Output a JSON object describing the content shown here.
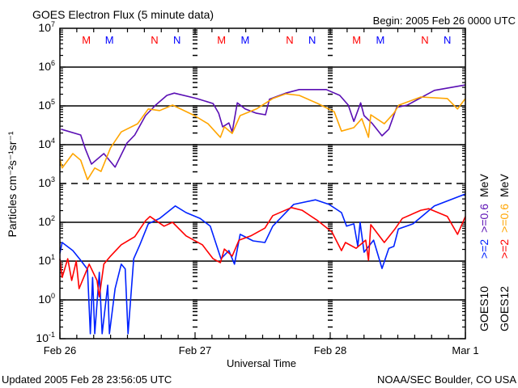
{
  "chart_data": {
    "type": "line",
    "title": "GOES Electron Flux (5 minute data)",
    "begin_label": "Begin: 2005 Feb 26 0000 UTC",
    "xlabel": "Universal Time",
    "ylabel": "Particles cm⁻²s⁻¹sr⁻¹",
    "y_scale": "log10",
    "ylim_log10": [
      -1,
      7
    ],
    "xlim_hours": [
      0,
      72
    ],
    "x_tick_labels": [
      {
        "hour": 0,
        "label": "Feb 26"
      },
      {
        "hour": 24,
        "label": "Feb 27"
      },
      {
        "hour": 48,
        "label": "Feb 28"
      },
      {
        "hour": 72,
        "label": "Mar 1"
      }
    ],
    "y_tick_exponents": [
      7,
      6,
      5,
      4,
      3,
      2,
      1,
      0,
      -1
    ],
    "y_tick_base": "10",
    "gridlines_log10": [
      6,
      5,
      4,
      2,
      1,
      0
    ],
    "dashed_gridline_log10": 3,
    "markers": [
      {
        "label": "M",
        "hour": 4.7,
        "color": "#ff0000"
      },
      {
        "label": "M",
        "hour": 8.8,
        "color": "#0000ff"
      },
      {
        "label": "N",
        "hour": 16.8,
        "color": "#ff0000"
      },
      {
        "label": "N",
        "hour": 20.8,
        "color": "#0000ff"
      },
      {
        "label": "M",
        "hour": 28.7,
        "color": "#ff0000"
      },
      {
        "label": "M",
        "hour": 32.9,
        "color": "#0000ff"
      },
      {
        "label": "N",
        "hour": 40.8,
        "color": "#ff0000"
      },
      {
        "label": "N",
        "hour": 44.8,
        "color": "#0000ff"
      },
      {
        "label": "M",
        "hour": 52.7,
        "color": "#ff0000"
      },
      {
        "label": "M",
        "hour": 56.9,
        "color": "#0000ff"
      },
      {
        "label": "N",
        "hour": 64.8,
        "color": "#ff0000"
      },
      {
        "label": "N",
        "hour": 68.8,
        "color": "#0000ff"
      }
    ],
    "legend": {
      "placement": "right",
      "columns": [
        {
          "satellite": "GOES10",
          "low_energy": ">=2",
          "low_color": "#0022ff",
          "high_energy": ">=0.6",
          "high_color": "#5a0fb4",
          "unit": "MeV"
        },
        {
          "satellite": "GOES12",
          "low_energy": ">=2",
          "low_color": "#ff0000",
          "high_energy": ">=0.6",
          "high_color": "#ffa500",
          "unit": "MeV"
        }
      ]
    },
    "series": [
      {
        "name": "GOES10 >=0.6 MeV",
        "color": "#5a0fb4",
        "hours": [
          0.2,
          3.7,
          4.5,
          5.6,
          7.8,
          9.8,
          11.9,
          13.3,
          15.2,
          17,
          19,
          20.3,
          24.3,
          27.2,
          28.2,
          28.9,
          30,
          30.6,
          31.5,
          32.9,
          34.9,
          36.5,
          37.2,
          40.1,
          42.5,
          47.3,
          49.7,
          51.2,
          52.2,
          53.4,
          54,
          55.5,
          57.2,
          58.4,
          59.8,
          61.7,
          66.5,
          72
        ],
        "log10_flux": [
          4.4,
          4.25,
          3.9,
          3.5,
          3.77,
          3.42,
          4.04,
          4.25,
          4.75,
          5.02,
          5.27,
          5.33,
          5.19,
          5.06,
          4.81,
          4.46,
          4.56,
          4.33,
          5.08,
          4.92,
          4.81,
          4.77,
          5.17,
          5.33,
          5.42,
          5.42,
          5.27,
          5.02,
          4.6,
          5.08,
          4.75,
          4.54,
          4.23,
          4.4,
          4.96,
          5.02,
          5.4,
          5.54
        ]
      },
      {
        "name": "GOES12 >=0.6 MeV",
        "color": "#ffa500",
        "hours": [
          0,
          0.4,
          2.3,
          3.7,
          4.9,
          6.2,
          7.3,
          9,
          10.9,
          13.8,
          15.7,
          17.7,
          20,
          23.9,
          26.3,
          28.5,
          29.2,
          30.6,
          32,
          34.9,
          37.8,
          40.1,
          42.5,
          45.8,
          48.7,
          50,
          52.2,
          53.6,
          54.8,
          55.2,
          57.6,
          59.3,
          60.2,
          64.1,
          68.8,
          70.6,
          72
        ],
        "log10_flux": [
          3.63,
          3.4,
          3.77,
          3.6,
          3.1,
          3.4,
          3.31,
          3.92,
          4.33,
          4.54,
          4.92,
          4.88,
          5.02,
          4.75,
          4.54,
          4.19,
          4.46,
          4.29,
          4.75,
          4.92,
          5.19,
          5.31,
          5.27,
          5.06,
          4.85,
          4.35,
          4.44,
          4.67,
          4.19,
          4.77,
          4.54,
          4.81,
          5.02,
          5.23,
          5.19,
          4.92,
          5.19
        ]
      },
      {
        "name": "GOES10 >=2 MeV",
        "color": "#0022ff",
        "hours": [
          0,
          0.4,
          2.3,
          3.7,
          4.9,
          5.4,
          5.8,
          6.2,
          7,
          7.5,
          8.5,
          8.8,
          9.8,
          10.9,
          11.6,
          12.1,
          13.1,
          14.2,
          15.7,
          17.7,
          20.5,
          22.4,
          24.9,
          26.7,
          28.6,
          30,
          31,
          32,
          34.3,
          36.4,
          37.8,
          41.5,
          45.4,
          47.8,
          50,
          50.9,
          52.2,
          52.9,
          53.3,
          54,
          55.7,
          57.2,
          58.4,
          59.3,
          60.1,
          62.7,
          66.5,
          72
        ],
        "log10_flux": [
          1.2,
          1.48,
          1.27,
          1.02,
          0.79,
          -0.87,
          0.58,
          -0.87,
          0.71,
          -0.87,
          0.38,
          -0.87,
          0.29,
          0.92,
          0.8,
          -0.87,
          1.06,
          1.42,
          1.96,
          2.1,
          2.42,
          2.25,
          2.1,
          1.9,
          1.06,
          1.27,
          0.92,
          1.69,
          1.52,
          1.48,
          1.9,
          2.46,
          2.58,
          2.46,
          2.25,
          1.9,
          1.96,
          1.38,
          2.0,
          1.23,
          1.54,
          0.81,
          1.33,
          1.38,
          1.83,
          1.96,
          2.42,
          2.73
        ]
      },
      {
        "name": "GOES12 >=2 MeV",
        "color": "#ff0000",
        "hours": [
          0,
          0.4,
          1.4,
          2.1,
          2.9,
          3.4,
          5.2,
          6.6,
          7,
          7.8,
          9,
          10.9,
          13.3,
          15.2,
          16,
          18.5,
          20,
          22.4,
          25.3,
          27.2,
          28.5,
          29.2,
          30.6,
          31.8,
          33.9,
          36.4,
          37.8,
          41.1,
          43,
          45.8,
          48.3,
          50,
          50.7,
          52.6,
          54.3,
          54.8,
          55.2,
          57.6,
          59.5,
          60.8,
          64.1,
          65.5,
          68.8,
          70.6,
          72
        ],
        "log10_flux": [
          1.06,
          0.58,
          1.06,
          0.5,
          1.0,
          0.29,
          0.92,
          0.5,
          0.08,
          0.92,
          1.13,
          1.42,
          1.63,
          2.04,
          2.15,
          1.9,
          2.0,
          1.65,
          1.42,
          1.06,
          0.96,
          1.31,
          1.13,
          1.54,
          1.65,
          1.85,
          2.17,
          2.38,
          2.31,
          2.04,
          1.75,
          1.27,
          1.48,
          1.33,
          1.54,
          1.02,
          1.94,
          1.48,
          1.83,
          2.1,
          2.31,
          2.35,
          2.15,
          1.69,
          2.15
        ]
      }
    ]
  },
  "footer": {
    "updated": "Updated 2005 Feb 28 23:56:05 UTC",
    "source": "NOAA/SEC Boulder, CO USA"
  }
}
